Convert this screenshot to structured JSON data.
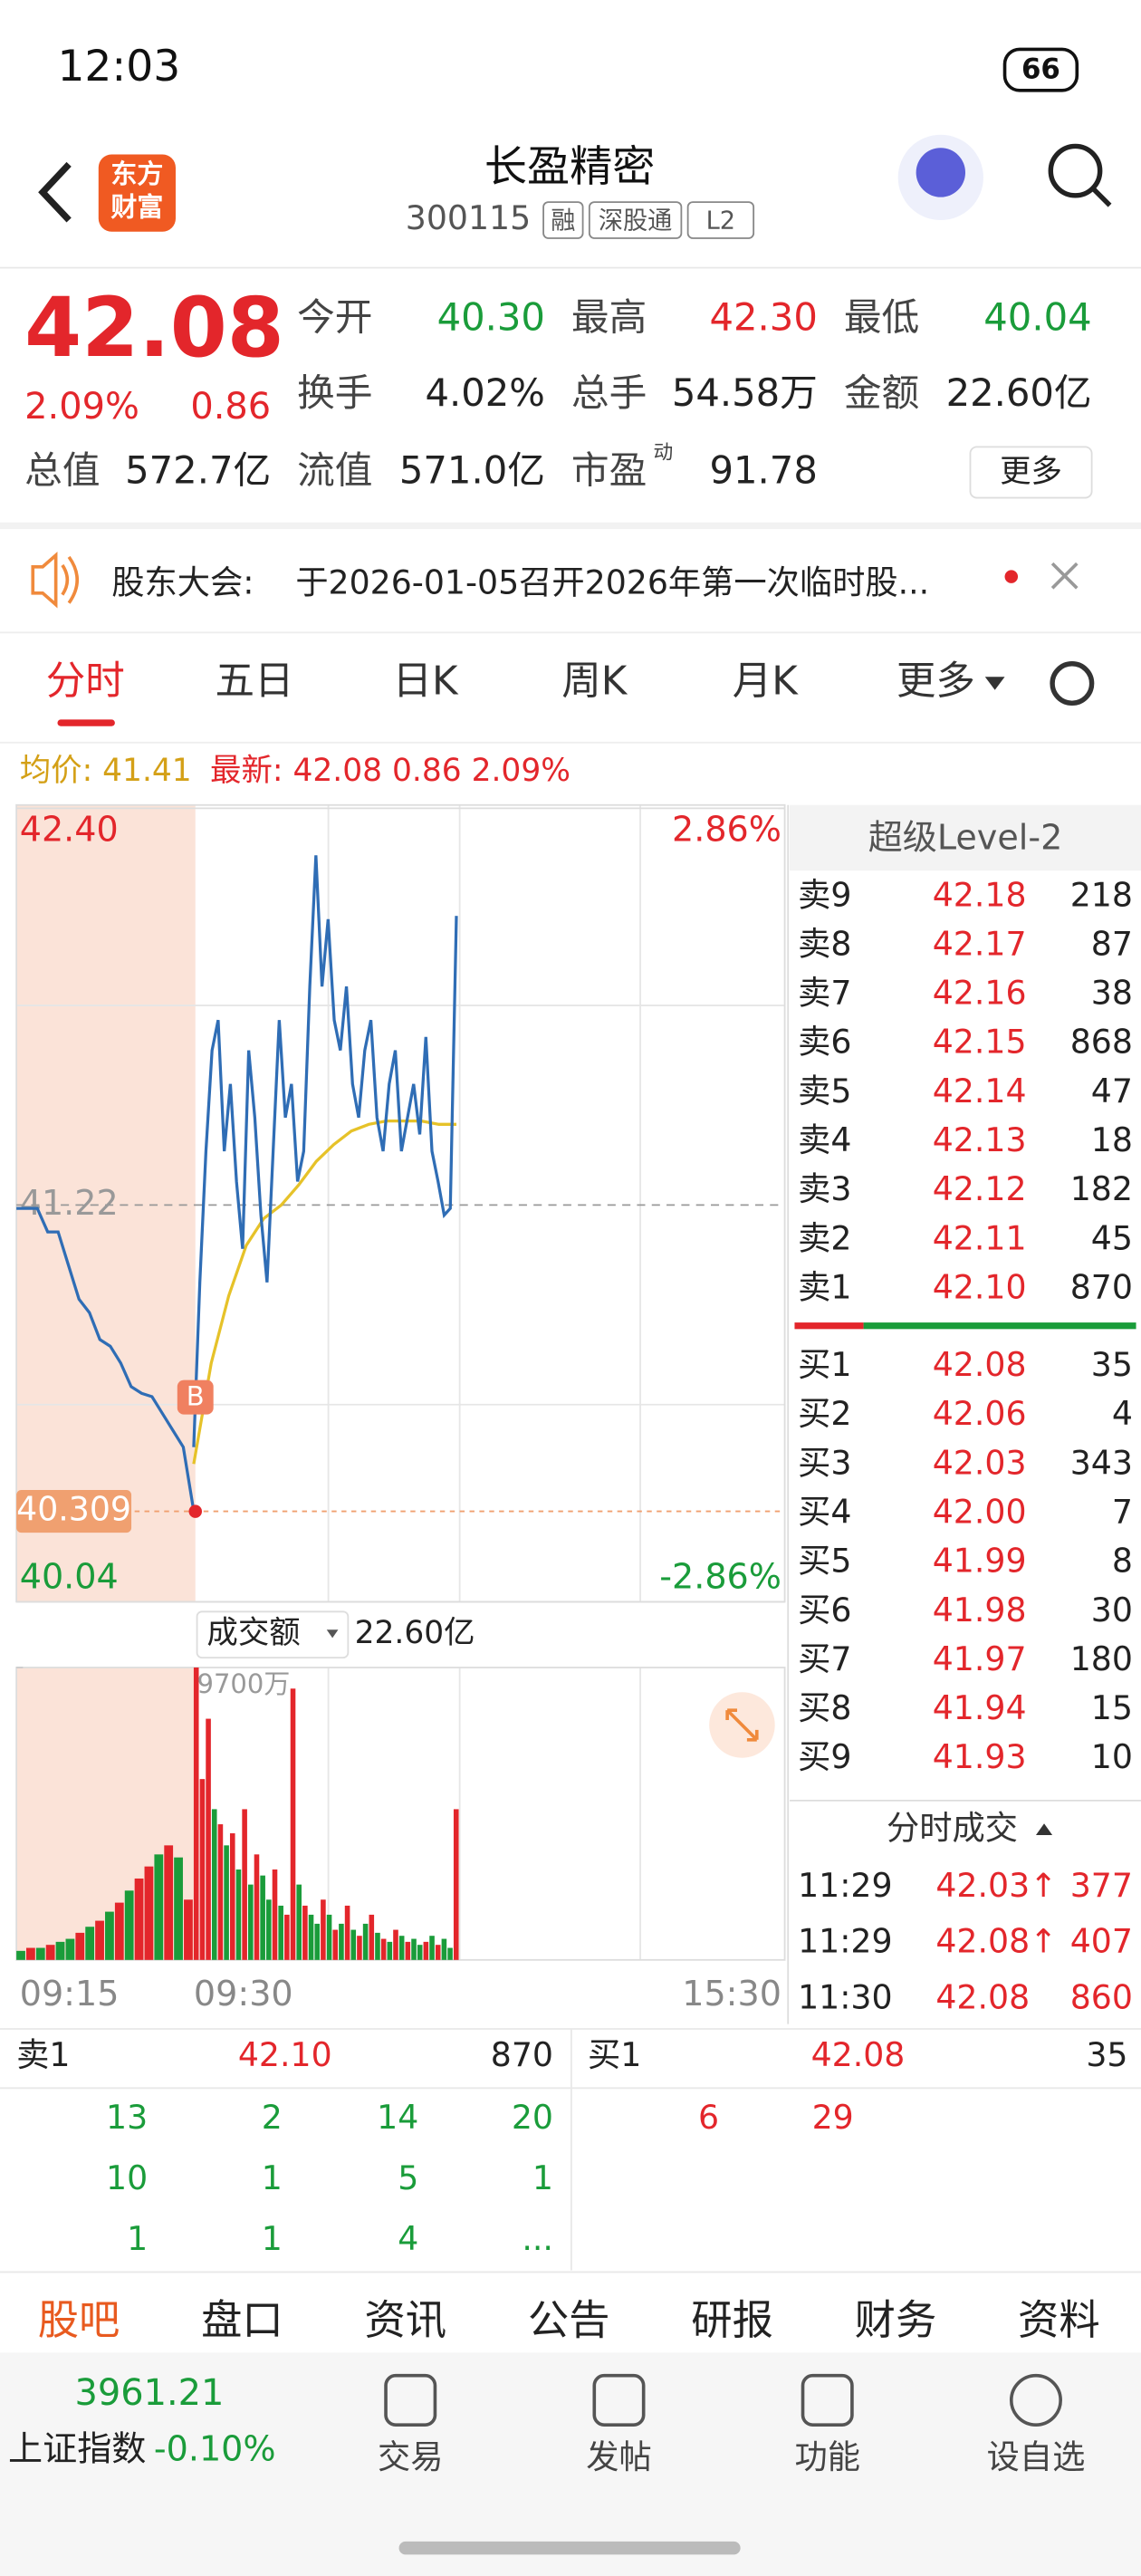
{
  "status_bar": {
    "time": "12:03",
    "battery": "66"
  },
  "header": {
    "logo": [
      "东方",
      "财富"
    ],
    "name": "长盈精密",
    "code": "300115",
    "tags": [
      "融",
      "深股通",
      "L2"
    ]
  },
  "quote": {
    "price": "42.08",
    "change_pct": "2.09%",
    "change": "0.86",
    "fields": [
      {
        "label": "今开",
        "value": "40.30",
        "color": "#1a9c3a"
      },
      {
        "label": "最高",
        "value": "42.30",
        "color": "#e3262b"
      },
      {
        "label": "最低",
        "value": "40.04",
        "color": "#1a9c3a"
      },
      {
        "label": "换手",
        "value": "4.02%",
        "color": "#222222"
      },
      {
        "label": "总手",
        "value": "54.58万",
        "color": "#222222"
      },
      {
        "label": "金额",
        "value": "22.60亿",
        "color": "#222222"
      },
      {
        "label": "总值",
        "value": "572.7亿",
        "color": "#222222"
      },
      {
        "label": "流值",
        "value": "571.0亿",
        "color": "#222222"
      },
      {
        "label": "市盈",
        "sup": "动",
        "value": "91.78",
        "color": "#222222"
      }
    ],
    "more": "更多"
  },
  "notice": {
    "label": "股东大会:",
    "text": "于2026-01-05召开2026年第一次临时股..."
  },
  "tabs": [
    "分时",
    "五日",
    "日K",
    "周K",
    "月K",
    "更多"
  ],
  "summary": {
    "avg": "均价: 41.41",
    "latest": "最新: 42.08 0.86 2.09%"
  },
  "chart_data": {
    "type": "line",
    "ylim": [
      40.04,
      42.4
    ],
    "yticks": [
      {
        "value": 42.4,
        "label": "42.40"
      },
      {
        "value": 41.22,
        "label": "41.22"
      },
      {
        "value": 40.04,
        "label": "40.04"
      }
    ],
    "y2lim": [
      -2.86,
      2.86
    ],
    "y2ticks": [
      {
        "value": 2.86,
        "label": "2.86%"
      },
      {
        "value": -2.86,
        "label": "-2.86%"
      }
    ],
    "xticks": [
      "09:15",
      "09:30",
      "15:30"
    ],
    "auction": {
      "color": "#2f6db5",
      "values": [
        41.21,
        41.21,
        41.21,
        41.14,
        41.14,
        41.04,
        40.94,
        40.9,
        40.82,
        40.8,
        40.75,
        40.68,
        40.66,
        40.65,
        40.6,
        40.55,
        40.5,
        40.31
      ]
    },
    "price": {
      "color": "#2f6db5",
      "values": [
        40.5,
        40.99,
        41.38,
        41.68,
        41.77,
        41.38,
        41.58,
        41.29,
        41.09,
        41.68,
        41.48,
        41.19,
        40.99,
        41.38,
        41.77,
        41.48,
        41.58,
        41.29,
        41.38,
        41.87,
        42.26,
        41.87,
        42.07,
        41.77,
        41.68,
        41.87,
        41.58,
        41.48,
        41.68,
        41.77,
        41.48,
        41.38,
        41.58,
        41.68,
        41.38,
        41.48,
        41.58,
        41.43,
        41.72,
        41.38,
        41.29,
        41.19,
        41.21,
        42.08
      ]
    },
    "avg": {
      "color": "#e6c229",
      "values": [
        40.45,
        40.75,
        40.95,
        41.1,
        41.18,
        41.22,
        41.28,
        41.35,
        41.4,
        41.44,
        41.46,
        41.47,
        41.47,
        41.47,
        41.46,
        41.46
      ]
    },
    "low": {
      "value": 40.309,
      "label": "40.309"
    },
    "buy_mark": "B",
    "volume": {
      "label": "成交额",
      "total": "22.60亿",
      "ylim": [
        0,
        9700
      ],
      "max_label": "9700万",
      "auction_values": [
        300,
        400,
        400,
        500,
        600,
        700,
        900,
        1100,
        1300,
        1600,
        1900,
        2300,
        2700,
        3100,
        3500,
        3800,
        3400,
        2000
      ],
      "auction_colors": [
        "#1a9c3a",
        "#e3262b",
        "#1a9c3a",
        "#e3262b",
        "#1a9c3a",
        "#1a9c3a",
        "#e3262b",
        "#1a9c3a",
        "#e3262b",
        "#1a9c3a",
        "#e3262b",
        "#1a9c3a",
        "#e3262b",
        "#e3262b",
        "#1a9c3a",
        "#e3262b",
        "#1a9c3a",
        "#e3262b"
      ],
      "values": [
        9700,
        6000,
        8000,
        5000,
        4500,
        3800,
        4200,
        3000,
        5000,
        2500,
        3500,
        2800,
        2000,
        3000,
        1800,
        1500,
        9000,
        2500,
        1800,
        1500,
        1200,
        2000,
        1500,
        1000,
        1200,
        1800,
        1000,
        800,
        1200,
        1500,
        900,
        700,
        600,
        1000,
        800,
        600,
        700,
        500,
        600,
        800,
        500,
        700,
        400,
        5000
      ],
      "colors": [
        "#e3262b",
        "#e3262b",
        "#e3262b",
        "#1a9c3a",
        "#e3262b",
        "#1a9c3a",
        "#e3262b",
        "#1a9c3a",
        "#e3262b",
        "#1a9c3a",
        "#e3262b",
        "#1a9c3a",
        "#1a9c3a",
        "#e3262b",
        "#1a9c3a",
        "#e3262b",
        "#e3262b",
        "#1a9c3a",
        "#e3262b",
        "#1a9c3a",
        "#1a9c3a",
        "#e3262b",
        "#1a9c3a",
        "#e3262b",
        "#1a9c3a",
        "#e3262b",
        "#1a9c3a",
        "#e3262b",
        "#1a9c3a",
        "#e3262b",
        "#1a9c3a",
        "#e3262b",
        "#1a9c3a",
        "#e3262b",
        "#1a9c3a",
        "#e3262b",
        "#1a9c3a",
        "#1a9c3a",
        "#e3262b",
        "#1a9c3a",
        "#e3262b",
        "#1a9c3a",
        "#1a9c3a",
        "#e3262b"
      ]
    }
  },
  "order_book": {
    "title": "超级Level-2",
    "asks": [
      {
        "label": "卖9",
        "price": "42.18",
        "qty": 218
      },
      {
        "label": "卖8",
        "price": "42.17",
        "qty": 87
      },
      {
        "label": "卖7",
        "price": "42.16",
        "qty": 38
      },
      {
        "label": "卖6",
        "price": "42.15",
        "qty": 868
      },
      {
        "label": "卖5",
        "price": "42.14",
        "qty": 47
      },
      {
        "label": "卖4",
        "price": "42.13",
        "qty": 18
      },
      {
        "label": "卖3",
        "price": "42.12",
        "qty": 182
      },
      {
        "label": "卖2",
        "price": "42.11",
        "qty": 45
      },
      {
        "label": "卖1",
        "price": "42.10",
        "qty": 870
      }
    ],
    "bids": [
      {
        "label": "买1",
        "price": "42.08",
        "qty": 35
      },
      {
        "label": "买2",
        "price": "42.06",
        "qty": 4
      },
      {
        "label": "买3",
        "price": "42.03",
        "qty": 343
      },
      {
        "label": "买4",
        "price": "42.00",
        "qty": 7
      },
      {
        "label": "买5",
        "price": "41.99",
        "qty": 8
      },
      {
        "label": "买6",
        "price": "41.98",
        "qty": 30
      },
      {
        "label": "买7",
        "price": "41.97",
        "qty": 180
      },
      {
        "label": "买8",
        "price": "41.94",
        "qty": 15
      },
      {
        "label": "买9",
        "price": "41.93",
        "qty": 10
      }
    ]
  },
  "trades": {
    "title": "分时成交",
    "rows": [
      {
        "time": "11:29",
        "price": "42.03↑",
        "qty": 377
      },
      {
        "time": "11:29",
        "price": "42.08↑",
        "qty": 407
      },
      {
        "time": "11:30",
        "price": "42.08",
        "qty": 860
      }
    ]
  },
  "queue": {
    "ask": {
      "label": "卖1",
      "price": "42.10",
      "qty": 870,
      "orders": [
        13,
        2,
        14,
        20,
        10,
        1,
        5,
        1,
        1,
        1,
        4,
        "..."
      ]
    },
    "bid": {
      "label": "买1",
      "price": "42.08",
      "qty": 35,
      "orders": [
        6,
        29
      ]
    }
  },
  "sub_tabs": [
    "股吧",
    "盘口",
    "资讯",
    "公告",
    "研报",
    "财务",
    "资料"
  ],
  "footer": {
    "index_value": "3961.21",
    "index_name": "上证指数",
    "index_change": "-0.10%",
    "nav": [
      "交易",
      "发帖",
      "功能",
      "设自选"
    ]
  }
}
